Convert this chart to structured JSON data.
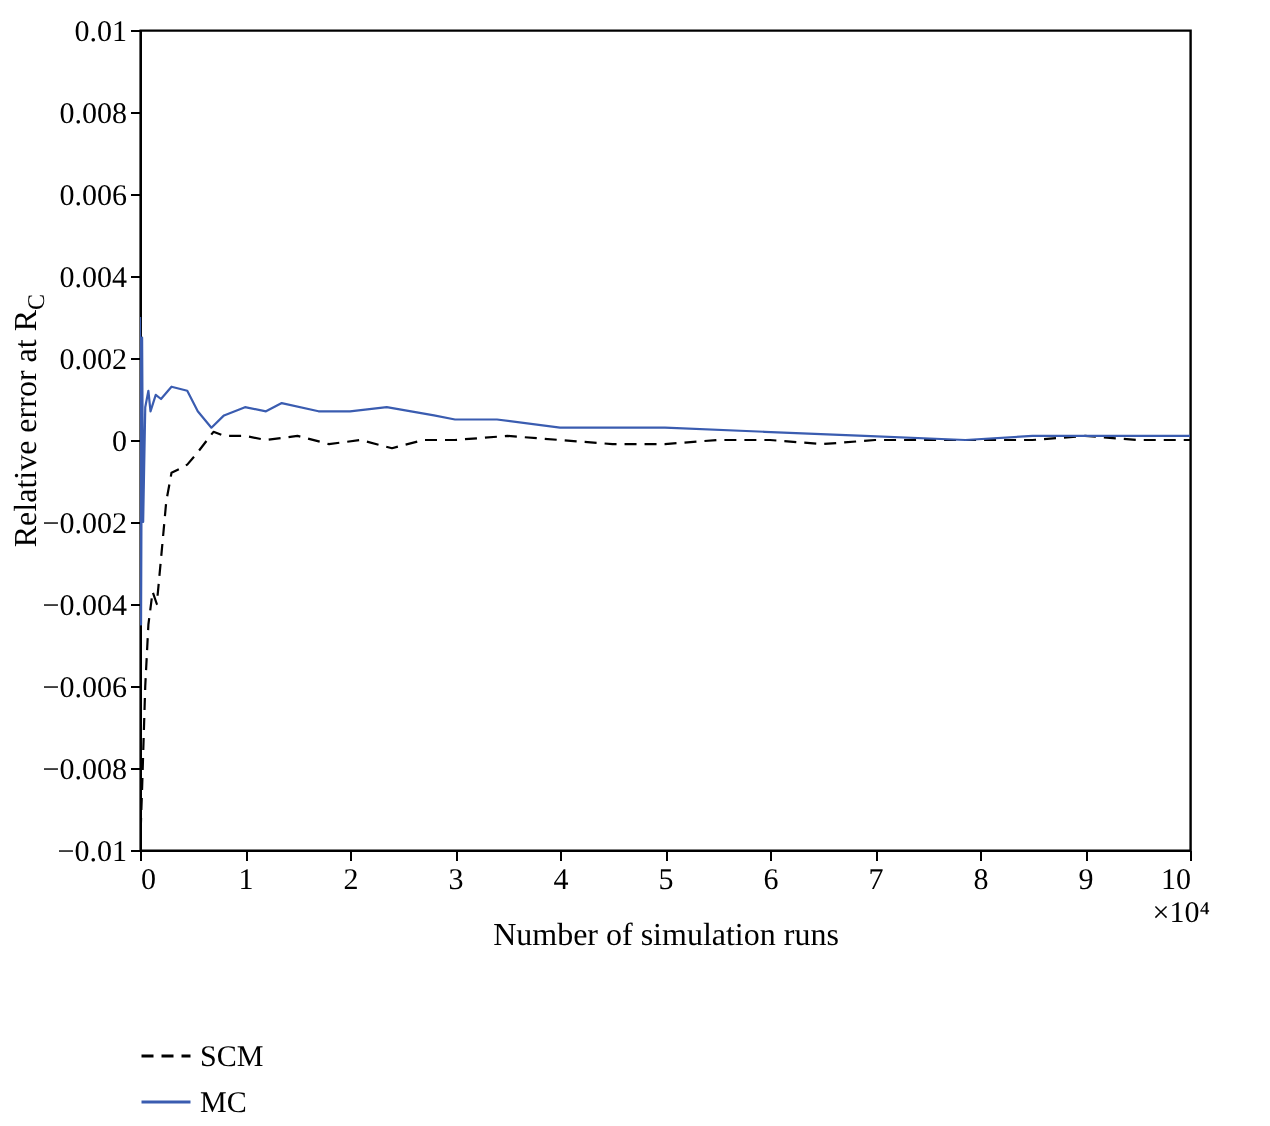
{
  "chart_data": {
    "type": "line",
    "xlabel": "Number of simulation runs",
    "ylabel": "Relative error at R$_{C}$",
    "xlim": [
      0,
      10
    ],
    "ylim": [
      -0.01,
      0.01
    ],
    "xticks": [
      0,
      1,
      2,
      3,
      4,
      5,
      6,
      7,
      8,
      9,
      10
    ],
    "yticks": [
      {
        "value": -0.01,
        "label": "−0.01"
      },
      {
        "value": -0.008,
        "label": "−0.008"
      },
      {
        "value": -0.006,
        "label": "−0.006"
      },
      {
        "value": -0.004,
        "label": "−0.004"
      },
      {
        "value": -0.002,
        "label": "−0.002"
      },
      0,
      0.002,
      0.004,
      0.006,
      0.008,
      0.01
    ],
    "grid": false,
    "legend": "bottom left",
    "annotations": [
      "×10⁴"
    ],
    "series": [
      {
        "name": "SCM",
        "color": "#000000",
        "line_style": "dashed",
        "x": [
          0,
          0.02,
          0.05,
          0.08,
          0.12,
          0.16,
          0.2,
          0.25,
          0.3,
          0.38,
          0.45,
          0.55,
          0.7,
          0.8,
          1.0,
          1.2,
          1.5,
          1.8,
          2.1,
          2.4,
          2.7,
          3.0,
          3.5,
          4.0,
          4.5,
          5.0,
          5.5,
          6.0,
          6.5,
          7.0,
          7.5,
          8.0,
          8.5,
          9.0,
          9.5,
          10
        ],
        "values": [
          -0.01,
          -0.0085,
          -0.006,
          -0.0045,
          -0.0037,
          -0.004,
          -0.0029,
          -0.0015,
          -0.0008,
          -0.0007,
          -0.0006,
          -0.0003,
          0.0002,
          0.0001,
          0.0001,
          0.0,
          0.0001,
          -0.0001,
          0.0,
          -0.0002,
          0.0,
          0.0,
          0.0001,
          0.0,
          -0.0001,
          -0.0001,
          0.0,
          0.0,
          -0.0001,
          0.0,
          0.0,
          0.0,
          0.0,
          0.0001,
          0.0,
          0.0
        ]
      },
      {
        "name": "MC",
        "color": "#3a5cb0",
        "line_style": "solid",
        "x": [
          0,
          0.01,
          0.02,
          0.03,
          0.05,
          0.08,
          0.1,
          0.15,
          0.2,
          0.3,
          0.45,
          0.55,
          0.68,
          0.8,
          1.0,
          1.2,
          1.35,
          1.7,
          2.0,
          2.35,
          2.8,
          3.0,
          3.4,
          4.0,
          4.5,
          5.0,
          5.95,
          6.9,
          7.86,
          8.5,
          9.0,
          9.46,
          10
        ],
        "values": [
          0.003,
          -0.0045,
          0.0025,
          -0.002,
          0.0008,
          0.0012,
          0.0007,
          0.0011,
          0.001,
          0.0013,
          0.0012,
          0.0007,
          0.0003,
          0.0006,
          0.0008,
          0.0007,
          0.0009,
          0.0007,
          0.0007,
          0.0008,
          0.0006,
          0.0005,
          0.0005,
          0.0003,
          0.0003,
          0.0003,
          0.0002,
          0.0001,
          0.0,
          0.0001,
          0.0001,
          0.0001,
          0.0001
        ]
      }
    ]
  }
}
